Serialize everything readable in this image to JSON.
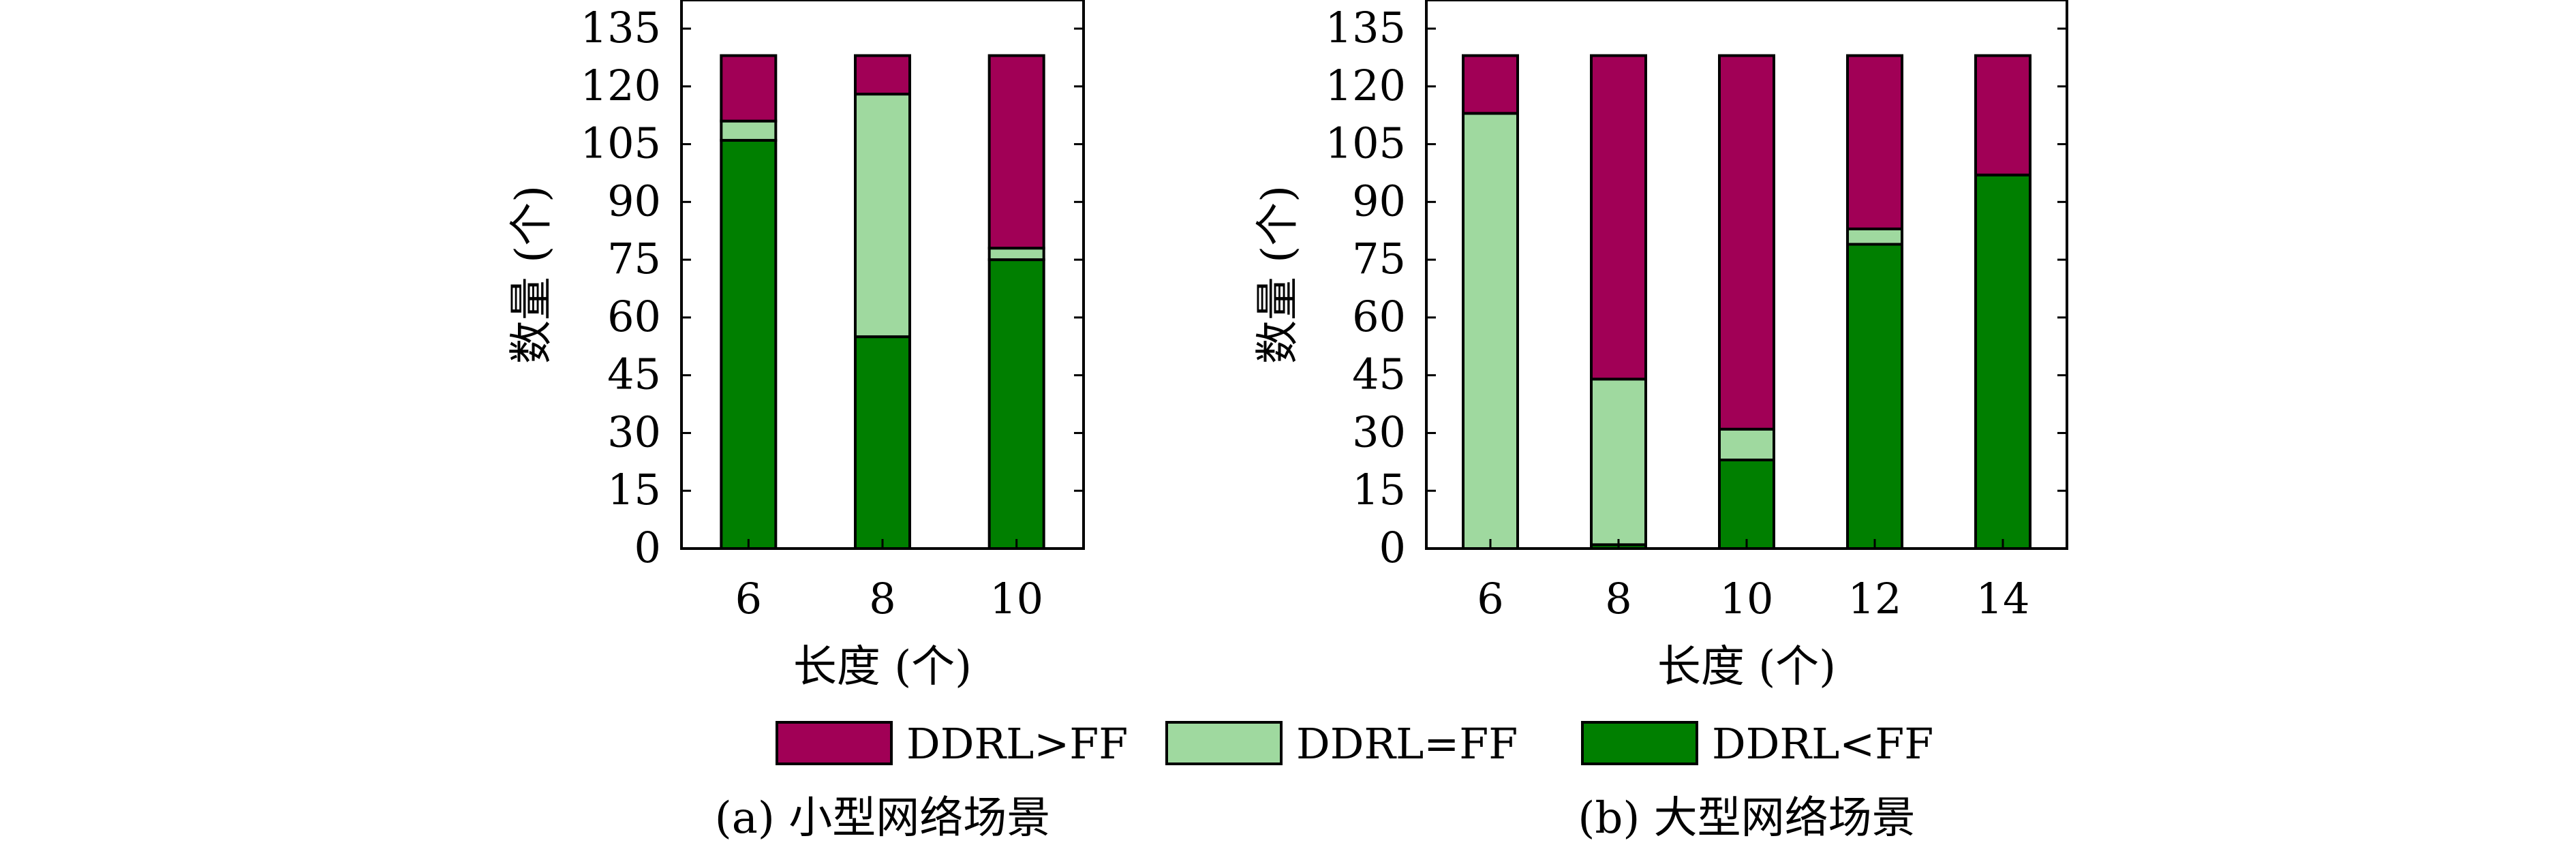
{
  "chart_data": [
    {
      "type": "bar",
      "stacked": true,
      "caption": "(a) 小型网络场景",
      "xlabel": "长度 (个)",
      "ylabel": "数量 (个)",
      "ylim": [
        0,
        135
      ],
      "yticks": [
        "0",
        "15",
        "30",
        "45",
        "60",
        "75",
        "90",
        "105",
        "120",
        "135"
      ],
      "categories": [
        "6",
        "8",
        "10"
      ],
      "grid": false,
      "series": [
        {
          "name": "DDRL<FF",
          "color": "#007f00",
          "values": [
            106,
            55,
            75
          ]
        },
        {
          "name": "DDRL=FF",
          "color": "#9fd99f",
          "values": [
            5,
            63,
            3
          ]
        },
        {
          "name": "DDRL>FF",
          "color": "#a10056",
          "values": [
            17,
            10,
            50
          ]
        }
      ]
    },
    {
      "type": "bar",
      "stacked": true,
      "caption": "(b) 大型网络场景",
      "xlabel": "长度 (个)",
      "ylabel": "数量 (个)",
      "ylim": [
        0,
        135
      ],
      "yticks": [
        "0",
        "15",
        "30",
        "45",
        "60",
        "75",
        "90",
        "105",
        "120",
        "135"
      ],
      "categories": [
        "6",
        "8",
        "10",
        "12",
        "14"
      ],
      "grid": false,
      "series": [
        {
          "name": "DDRL<FF",
          "color": "#007f00",
          "values": [
            0,
            1,
            23,
            79,
            97
          ]
        },
        {
          "name": "DDRL=FF",
          "color": "#9fd99f",
          "values": [
            113,
            43,
            8,
            4,
            0
          ]
        },
        {
          "name": "DDRL>FF",
          "color": "#a10056",
          "values": [
            15,
            84,
            97,
            45,
            31
          ]
        }
      ]
    }
  ],
  "legend": {
    "placement": "bottom-center",
    "items": [
      {
        "label": "DDRL>FF",
        "color": "#a10056"
      },
      {
        "label": "DDRL=FF",
        "color": "#9fd99f"
      },
      {
        "label": "DDRL<FF",
        "color": "#007f00"
      }
    ]
  }
}
